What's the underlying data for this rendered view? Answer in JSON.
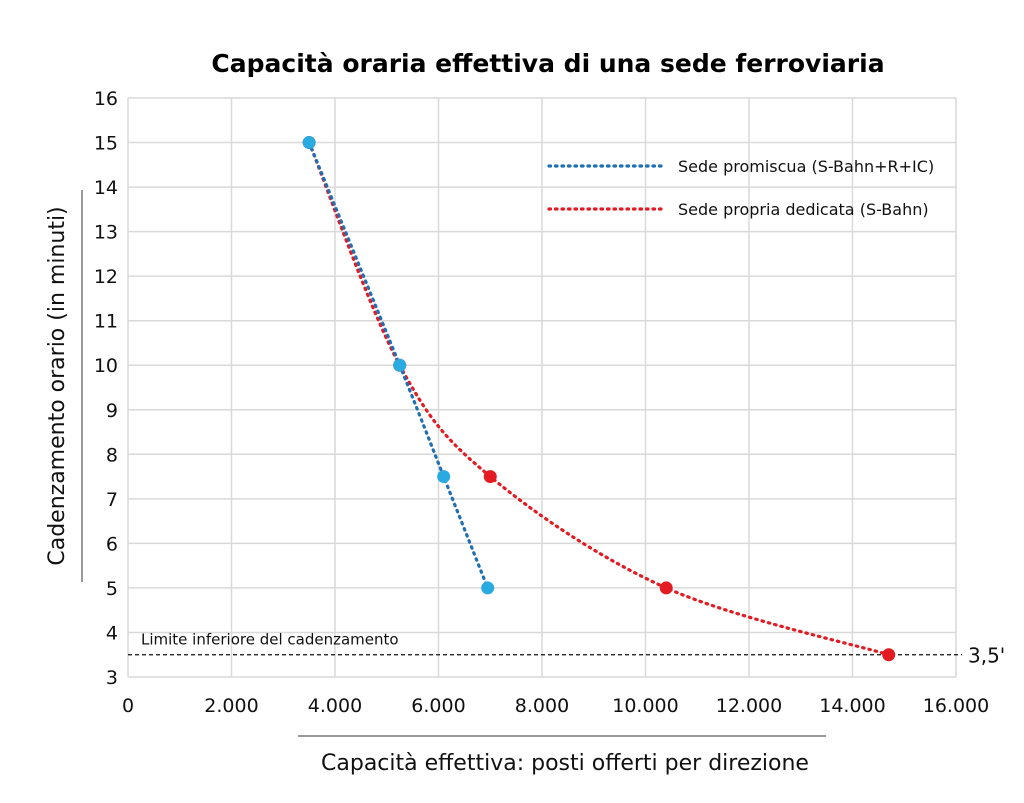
{
  "chart_data": {
    "type": "line",
    "title": "Capacità oraria effettiva di una sede ferroviaria",
    "xlabel": "Capacità effettiva: posti offerti per direzione",
    "ylabel": "Cadenzamento orario (in minuti)",
    "xlim": [
      0,
      16000
    ],
    "ylim": [
      3,
      16
    ],
    "x_ticks": [
      0,
      2000,
      4000,
      6000,
      8000,
      10000,
      12000,
      14000,
      16000
    ],
    "x_tick_labels": [
      "0",
      "2.000",
      "4.000",
      "6.000",
      "8.000",
      "10.000",
      "12.000",
      "14.000",
      "16.000"
    ],
    "y_ticks": [
      3,
      4,
      5,
      6,
      7,
      8,
      9,
      10,
      11,
      12,
      13,
      14,
      15,
      16
    ],
    "y_tick_labels": [
      "3",
      "4",
      "5",
      "6",
      "7",
      "8",
      "9",
      "10",
      "11",
      "12",
      "13",
      "14",
      "15",
      "16"
    ],
    "grid": true,
    "legend_position": "top-right",
    "series": [
      {
        "name": "Sede promiscua (S-Bahn+R+IC)",
        "line_color": "#1f6fb5",
        "marker_color": "#29abe2",
        "line_style": "dotted",
        "x": [
          3500,
          5250,
          6100,
          6950
        ],
        "y": [
          15,
          10,
          7.5,
          5
        ]
      },
      {
        "name": "Sede propria dedicata (S-Bahn)",
        "line_color": "#e31b23",
        "marker_color": "#e31b23",
        "line_style": "dotted",
        "x": [
          3500,
          5250,
          7000,
          10400,
          14700
        ],
        "y": [
          15,
          10,
          7.5,
          5,
          3.5
        ]
      }
    ],
    "reference_line": {
      "y": 3.5,
      "label": "Limite inferiore del cadenzamento",
      "end_label": "3,5'",
      "color": "#111111"
    }
  }
}
